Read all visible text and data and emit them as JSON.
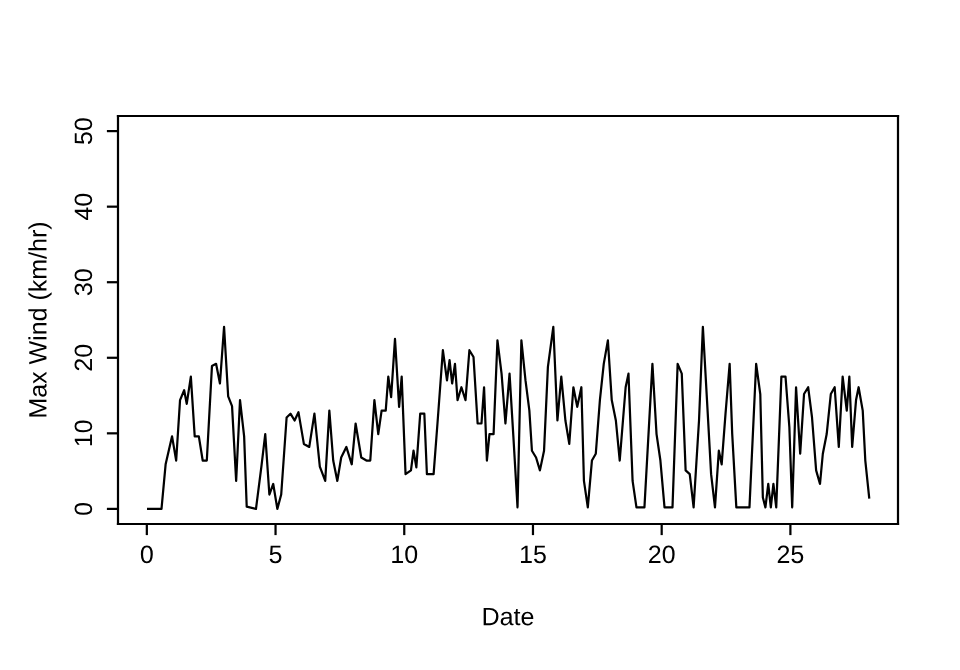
{
  "chart_data": {
    "type": "line",
    "xlabel": "Date",
    "ylabel": "Max Wind (km/hr)",
    "x": [
      0.05,
      0.57,
      0.73,
      0.98,
      1.14,
      1.29,
      1.45,
      1.55,
      1.71,
      1.86,
      2.02,
      2.17,
      2.33,
      2.53,
      2.69,
      2.84,
      3.0,
      3.16,
      3.31,
      3.47,
      3.62,
      3.78,
      3.88,
      4.24,
      4.45,
      4.6,
      4.76,
      4.91,
      5.07,
      5.22,
      5.43,
      5.58,
      5.74,
      5.89,
      6.1,
      6.31,
      6.51,
      6.72,
      6.93,
      7.09,
      7.24,
      7.4,
      7.55,
      7.75,
      7.96,
      8.11,
      8.33,
      8.53,
      8.68,
      8.84,
      8.99,
      9.12,
      9.28,
      9.38,
      9.49,
      9.64,
      9.8,
      9.9,
      10.05,
      10.26,
      10.36,
      10.47,
      10.62,
      10.78,
      10.88,
      11.14,
      11.29,
      11.5,
      11.66,
      11.76,
      11.86,
      11.97,
      12.07,
      12.22,
      12.38,
      12.53,
      12.69,
      12.85,
      13.0,
      13.1,
      13.21,
      13.31,
      13.47,
      13.62,
      13.78,
      13.93,
      14.09,
      14.24,
      14.4,
      14.55,
      14.71,
      14.86,
      14.96,
      15.12,
      15.27,
      15.43,
      15.58,
      15.79,
      15.95,
      16.1,
      16.26,
      16.41,
      16.57,
      16.72,
      16.88,
      16.98,
      17.13,
      17.29,
      17.44,
      17.6,
      17.75,
      17.91,
      18.06,
      18.22,
      18.37,
      18.6,
      18.71,
      18.87,
      19.02,
      19.33,
      19.64,
      19.8,
      19.95,
      20.11,
      20.42,
      20.62,
      20.78,
      20.93,
      21.09,
      21.24,
      21.45,
      21.6,
      21.76,
      21.92,
      22.07,
      22.22,
      22.33,
      22.48,
      22.64,
      22.74,
      22.9,
      23.41,
      23.67,
      23.83,
      23.93,
      24.03,
      24.14,
      24.24,
      24.34,
      24.45,
      24.65,
      24.81,
      24.96,
      25.07,
      25.22,
      25.38,
      25.53,
      25.69,
      25.84,
      26.0,
      26.15,
      26.26,
      26.41,
      26.57,
      26.72,
      26.88,
      27.03,
      27.19,
      27.29,
      27.4,
      27.55,
      27.65,
      27.81,
      27.91,
      28.06
    ],
    "values": [
      0,
      0,
      5.9,
      9.6,
      6.4,
      14.4,
      15.7,
      13.9,
      17.5,
      9.6,
      9.6,
      6.4,
      6.4,
      18.9,
      19.2,
      16.6,
      24.1,
      14.9,
      13.6,
      3.7,
      14.4,
      9.6,
      0.3,
      0,
      5.6,
      9.9,
      1.9,
      3.3,
      0,
      1.9,
      12.1,
      12.6,
      11.7,
      12.8,
      8.6,
      8.2,
      12.6,
      5.6,
      3.7,
      13.0,
      6.4,
      3.7,
      6.8,
      8.2,
      5.9,
      11.3,
      6.8,
      6.4,
      6.4,
      14.4,
      9.9,
      13.0,
      13.0,
      17.5,
      14.8,
      22.5,
      13.5,
      17.5,
      4.6,
      5.1,
      7.7,
      5.5,
      12.6,
      12.6,
      4.6,
      4.6,
      11.3,
      21.0,
      17.0,
      19.7,
      16.6,
      19.2,
      14.4,
      16.1,
      14.4,
      21.0,
      20.1,
      11.3,
      11.3,
      16.1,
      6.4,
      9.9,
      9.9,
      22.3,
      17.9,
      11.3,
      17.9,
      9.5,
      0.2,
      22.3,
      17.0,
      13.0,
      7.7,
      6.8,
      5.1,
      7.7,
      18.8,
      24.1,
      11.7,
      17.5,
      11.7,
      8.6,
      16.1,
      13.5,
      16.1,
      3.7,
      0.2,
      6.4,
      7.3,
      14.4,
      19.2,
      22.3,
      14.4,
      11.7,
      6.4,
      16.1,
      17.9,
      3.7,
      0.2,
      0.2,
      19.2,
      9.9,
      6.4,
      0.2,
      0.2,
      19.2,
      17.9,
      5.1,
      4.6,
      0.2,
      11.7,
      24.1,
      14.4,
      4.6,
      0.2,
      7.7,
      5.9,
      12.6,
      19.2,
      9.9,
      0.2,
      0.2,
      19.2,
      15.2,
      1.5,
      0.2,
      3.3,
      0.2,
      3.3,
      0.2,
      17.5,
      17.5,
      10.8,
      0.2,
      16.1,
      7.3,
      15.2,
      16.1,
      12.1,
      5.1,
      3.3,
      7.3,
      9.9,
      15.2,
      16.1,
      8.2,
      17.5,
      13.0,
      17.5,
      8.2,
      14.4,
      16.1,
      13.0,
      6.4,
      1.5
    ],
    "color": "#000000",
    "line_style": "solid",
    "marker": "none",
    "grid": false,
    "legend": false,
    "xlim": [
      -1.12,
      29.18
    ],
    "ylim": [
      -2,
      52
    ],
    "xticks": [
      0,
      5,
      10,
      15,
      20,
      25
    ],
    "yticks": [
      0,
      10,
      20,
      30,
      40,
      50
    ]
  }
}
